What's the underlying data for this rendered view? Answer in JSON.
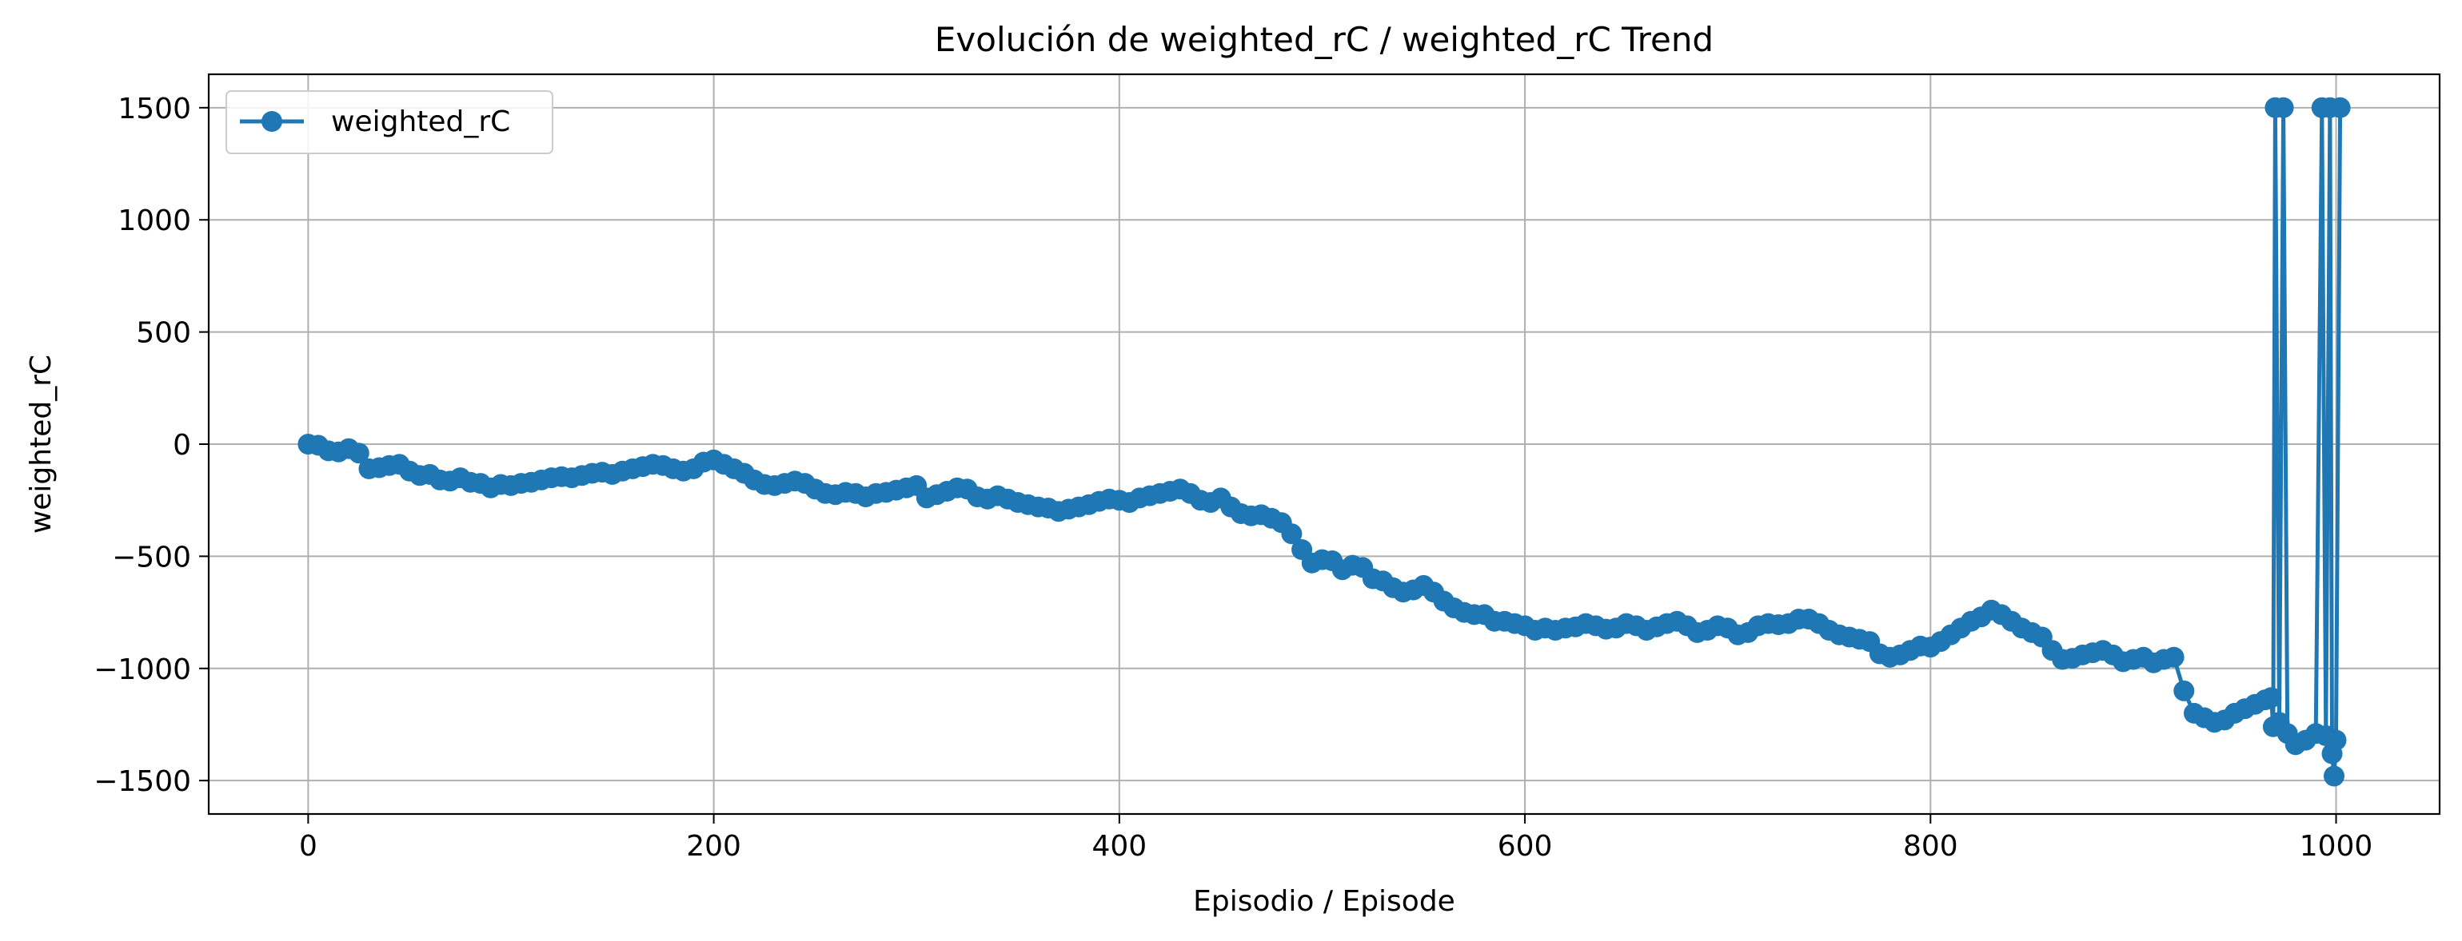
{
  "chart_data": {
    "type": "line",
    "title": "Evolución de weighted_rC / weighted_rC Trend",
    "xlabel": "Episodio / Episode",
    "ylabel": "weighted_rC",
    "xlim": [
      -49.05,
      1051.05
    ],
    "ylim": [
      -1649,
      1649
    ],
    "xticks": [
      0,
      200,
      400,
      600,
      800,
      1000
    ],
    "yticks": [
      -1500,
      -1000,
      -500,
      0,
      500,
      1000,
      1500
    ],
    "grid": true,
    "legend": "top-left",
    "series": [
      {
        "name": "weighted_rC",
        "color": "#1f77b4",
        "marker": "circle",
        "points": [
          [
            0,
            0
          ],
          [
            5,
            -5
          ],
          [
            10,
            -30
          ],
          [
            15,
            -35
          ],
          [
            20,
            -20
          ],
          [
            25,
            -40
          ],
          [
            30,
            -110
          ],
          [
            35,
            -105
          ],
          [
            40,
            -95
          ],
          [
            45,
            -90
          ],
          [
            50,
            -120
          ],
          [
            55,
            -140
          ],
          [
            60,
            -135
          ],
          [
            65,
            -160
          ],
          [
            70,
            -165
          ],
          [
            75,
            -150
          ],
          [
            80,
            -170
          ],
          [
            85,
            -175
          ],
          [
            90,
            -195
          ],
          [
            95,
            -180
          ],
          [
            100,
            -185
          ],
          [
            105,
            -175
          ],
          [
            110,
            -170
          ],
          [
            115,
            -160
          ],
          [
            120,
            -150
          ],
          [
            125,
            -145
          ],
          [
            130,
            -150
          ],
          [
            135,
            -140
          ],
          [
            140,
            -130
          ],
          [
            145,
            -125
          ],
          [
            150,
            -135
          ],
          [
            155,
            -120
          ],
          [
            160,
            -110
          ],
          [
            165,
            -100
          ],
          [
            170,
            -90
          ],
          [
            175,
            -95
          ],
          [
            180,
            -110
          ],
          [
            185,
            -120
          ],
          [
            190,
            -110
          ],
          [
            195,
            -80
          ],
          [
            200,
            -70
          ],
          [
            205,
            -90
          ],
          [
            210,
            -110
          ],
          [
            215,
            -130
          ],
          [
            220,
            -160
          ],
          [
            225,
            -180
          ],
          [
            230,
            -185
          ],
          [
            235,
            -175
          ],
          [
            240,
            -165
          ],
          [
            245,
            -175
          ],
          [
            250,
            -200
          ],
          [
            255,
            -220
          ],
          [
            260,
            -225
          ],
          [
            265,
            -215
          ],
          [
            270,
            -220
          ],
          [
            275,
            -235
          ],
          [
            280,
            -220
          ],
          [
            285,
            -215
          ],
          [
            290,
            -205
          ],
          [
            295,
            -195
          ],
          [
            300,
            -185
          ],
          [
            305,
            -240
          ],
          [
            310,
            -225
          ],
          [
            315,
            -210
          ],
          [
            320,
            -195
          ],
          [
            325,
            -200
          ],
          [
            330,
            -235
          ],
          [
            335,
            -245
          ],
          [
            340,
            -230
          ],
          [
            345,
            -245
          ],
          [
            350,
            -260
          ],
          [
            355,
            -270
          ],
          [
            360,
            -280
          ],
          [
            365,
            -285
          ],
          [
            370,
            -300
          ],
          [
            375,
            -290
          ],
          [
            380,
            -280
          ],
          [
            385,
            -270
          ],
          [
            390,
            -255
          ],
          [
            395,
            -245
          ],
          [
            400,
            -250
          ],
          [
            405,
            -260
          ],
          [
            410,
            -240
          ],
          [
            415,
            -230
          ],
          [
            420,
            -220
          ],
          [
            425,
            -210
          ],
          [
            430,
            -200
          ],
          [
            435,
            -220
          ],
          [
            440,
            -250
          ],
          [
            445,
            -260
          ],
          [
            450,
            -240
          ],
          [
            455,
            -280
          ],
          [
            460,
            -310
          ],
          [
            465,
            -320
          ],
          [
            470,
            -315
          ],
          [
            475,
            -330
          ],
          [
            480,
            -350
          ],
          [
            485,
            -400
          ],
          [
            490,
            -470
          ],
          [
            495,
            -530
          ],
          [
            500,
            -515
          ],
          [
            505,
            -520
          ],
          [
            510,
            -560
          ],
          [
            515,
            -540
          ],
          [
            520,
            -550
          ],
          [
            525,
            -600
          ],
          [
            530,
            -610
          ],
          [
            535,
            -640
          ],
          [
            540,
            -660
          ],
          [
            545,
            -650
          ],
          [
            550,
            -630
          ],
          [
            555,
            -660
          ],
          [
            560,
            -700
          ],
          [
            565,
            -730
          ],
          [
            570,
            -750
          ],
          [
            575,
            -760
          ],
          [
            580,
            -760
          ],
          [
            585,
            -790
          ],
          [
            590,
            -790
          ],
          [
            595,
            -800
          ],
          [
            600,
            -810
          ],
          [
            605,
            -830
          ],
          [
            610,
            -820
          ],
          [
            615,
            -830
          ],
          [
            620,
            -820
          ],
          [
            625,
            -815
          ],
          [
            630,
            -800
          ],
          [
            635,
            -810
          ],
          [
            640,
            -825
          ],
          [
            645,
            -820
          ],
          [
            650,
            -800
          ],
          [
            655,
            -810
          ],
          [
            660,
            -830
          ],
          [
            665,
            -815
          ],
          [
            670,
            -800
          ],
          [
            675,
            -790
          ],
          [
            680,
            -810
          ],
          [
            685,
            -840
          ],
          [
            690,
            -830
          ],
          [
            695,
            -810
          ],
          [
            700,
            -820
          ],
          [
            705,
            -850
          ],
          [
            710,
            -840
          ],
          [
            715,
            -810
          ],
          [
            720,
            -800
          ],
          [
            725,
            -805
          ],
          [
            730,
            -800
          ],
          [
            735,
            -780
          ],
          [
            740,
            -780
          ],
          [
            745,
            -800
          ],
          [
            750,
            -830
          ],
          [
            755,
            -850
          ],
          [
            760,
            -860
          ],
          [
            765,
            -870
          ],
          [
            770,
            -880
          ],
          [
            775,
            -935
          ],
          [
            780,
            -950
          ],
          [
            785,
            -940
          ],
          [
            790,
            -920
          ],
          [
            795,
            -900
          ],
          [
            800,
            -905
          ],
          [
            805,
            -880
          ],
          [
            810,
            -850
          ],
          [
            815,
            -820
          ],
          [
            820,
            -790
          ],
          [
            825,
            -770
          ],
          [
            830,
            -740
          ],
          [
            835,
            -760
          ],
          [
            840,
            -790
          ],
          [
            845,
            -820
          ],
          [
            850,
            -840
          ],
          [
            855,
            -860
          ],
          [
            860,
            -920
          ],
          [
            865,
            -960
          ],
          [
            870,
            -955
          ],
          [
            875,
            -940
          ],
          [
            880,
            -930
          ],
          [
            885,
            -920
          ],
          [
            890,
            -940
          ],
          [
            895,
            -970
          ],
          [
            900,
            -960
          ],
          [
            905,
            -950
          ],
          [
            910,
            -975
          ],
          [
            915,
            -960
          ],
          [
            920,
            -950
          ],
          [
            925,
            -1100
          ],
          [
            930,
            -1200
          ],
          [
            935,
            -1220
          ],
          [
            940,
            -1240
          ],
          [
            945,
            -1230
          ],
          [
            950,
            -1200
          ],
          [
            955,
            -1180
          ],
          [
            960,
            -1160
          ],
          [
            965,
            -1140
          ],
          [
            968,
            -1130
          ],
          [
            969,
            -1260
          ],
          [
            970,
            1500
          ],
          [
            972,
            -1240
          ],
          [
            974,
            1500
          ],
          [
            976,
            -1290
          ],
          [
            980,
            -1340
          ],
          [
            985,
            -1320
          ],
          [
            990,
            -1290
          ],
          [
            993,
            1500
          ],
          [
            995,
            -1300
          ],
          [
            997,
            1500
          ],
          [
            998,
            -1380
          ],
          [
            999,
            -1480
          ],
          [
            1000,
            -1320
          ],
          [
            1002,
            1500
          ]
        ]
      }
    ]
  }
}
